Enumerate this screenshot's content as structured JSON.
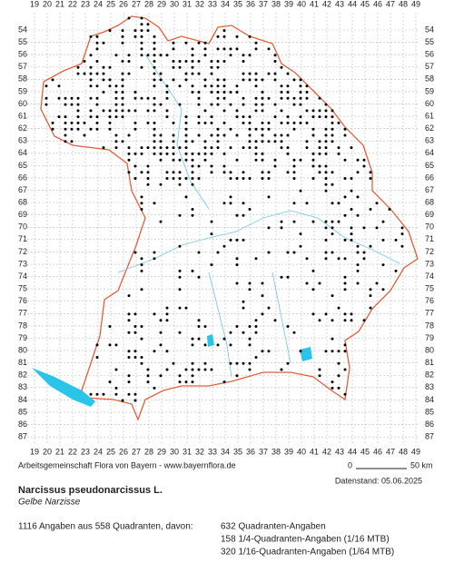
{
  "grid": {
    "columns": [
      "19",
      "20",
      "21",
      "22",
      "23",
      "24",
      "25",
      "26",
      "27",
      "28",
      "29",
      "30",
      "31",
      "32",
      "33",
      "34",
      "35",
      "36",
      "37",
      "38",
      "39",
      "40",
      "41",
      "42",
      "43",
      "44",
      "45",
      "46",
      "47",
      "48",
      "49"
    ],
    "rows": [
      "54",
      "55",
      "56",
      "57",
      "58",
      "59",
      "60",
      "61",
      "62",
      "63",
      "64",
      "65",
      "66",
      "67",
      "68",
      "69",
      "70",
      "71",
      "72",
      "73",
      "74",
      "75",
      "76",
      "77",
      "78",
      "79",
      "80",
      "81",
      "82",
      "83",
      "84",
      "85",
      "86",
      "87"
    ]
  },
  "credit": "Arbeitsgemeinschaft Flora von Bayern - www.bayernflora.de",
  "scale": {
    "start": "0",
    "end": "50 km"
  },
  "date": "Datenstand: 05.06.2025",
  "species": {
    "name": "Narcissus pseudonarcissus L.",
    "common_name": "Gelbe Narzisse"
  },
  "summary": {
    "total": "1116 Angaben aus 558 Quadranten, davon:",
    "details": [
      "632 Quadranten-Angaben",
      "158 1/4-Quadranten-Angaben (1/16 MTB)",
      "320 1/16-Quadranten-Angaben (1/64 MTB)"
    ]
  }
}
